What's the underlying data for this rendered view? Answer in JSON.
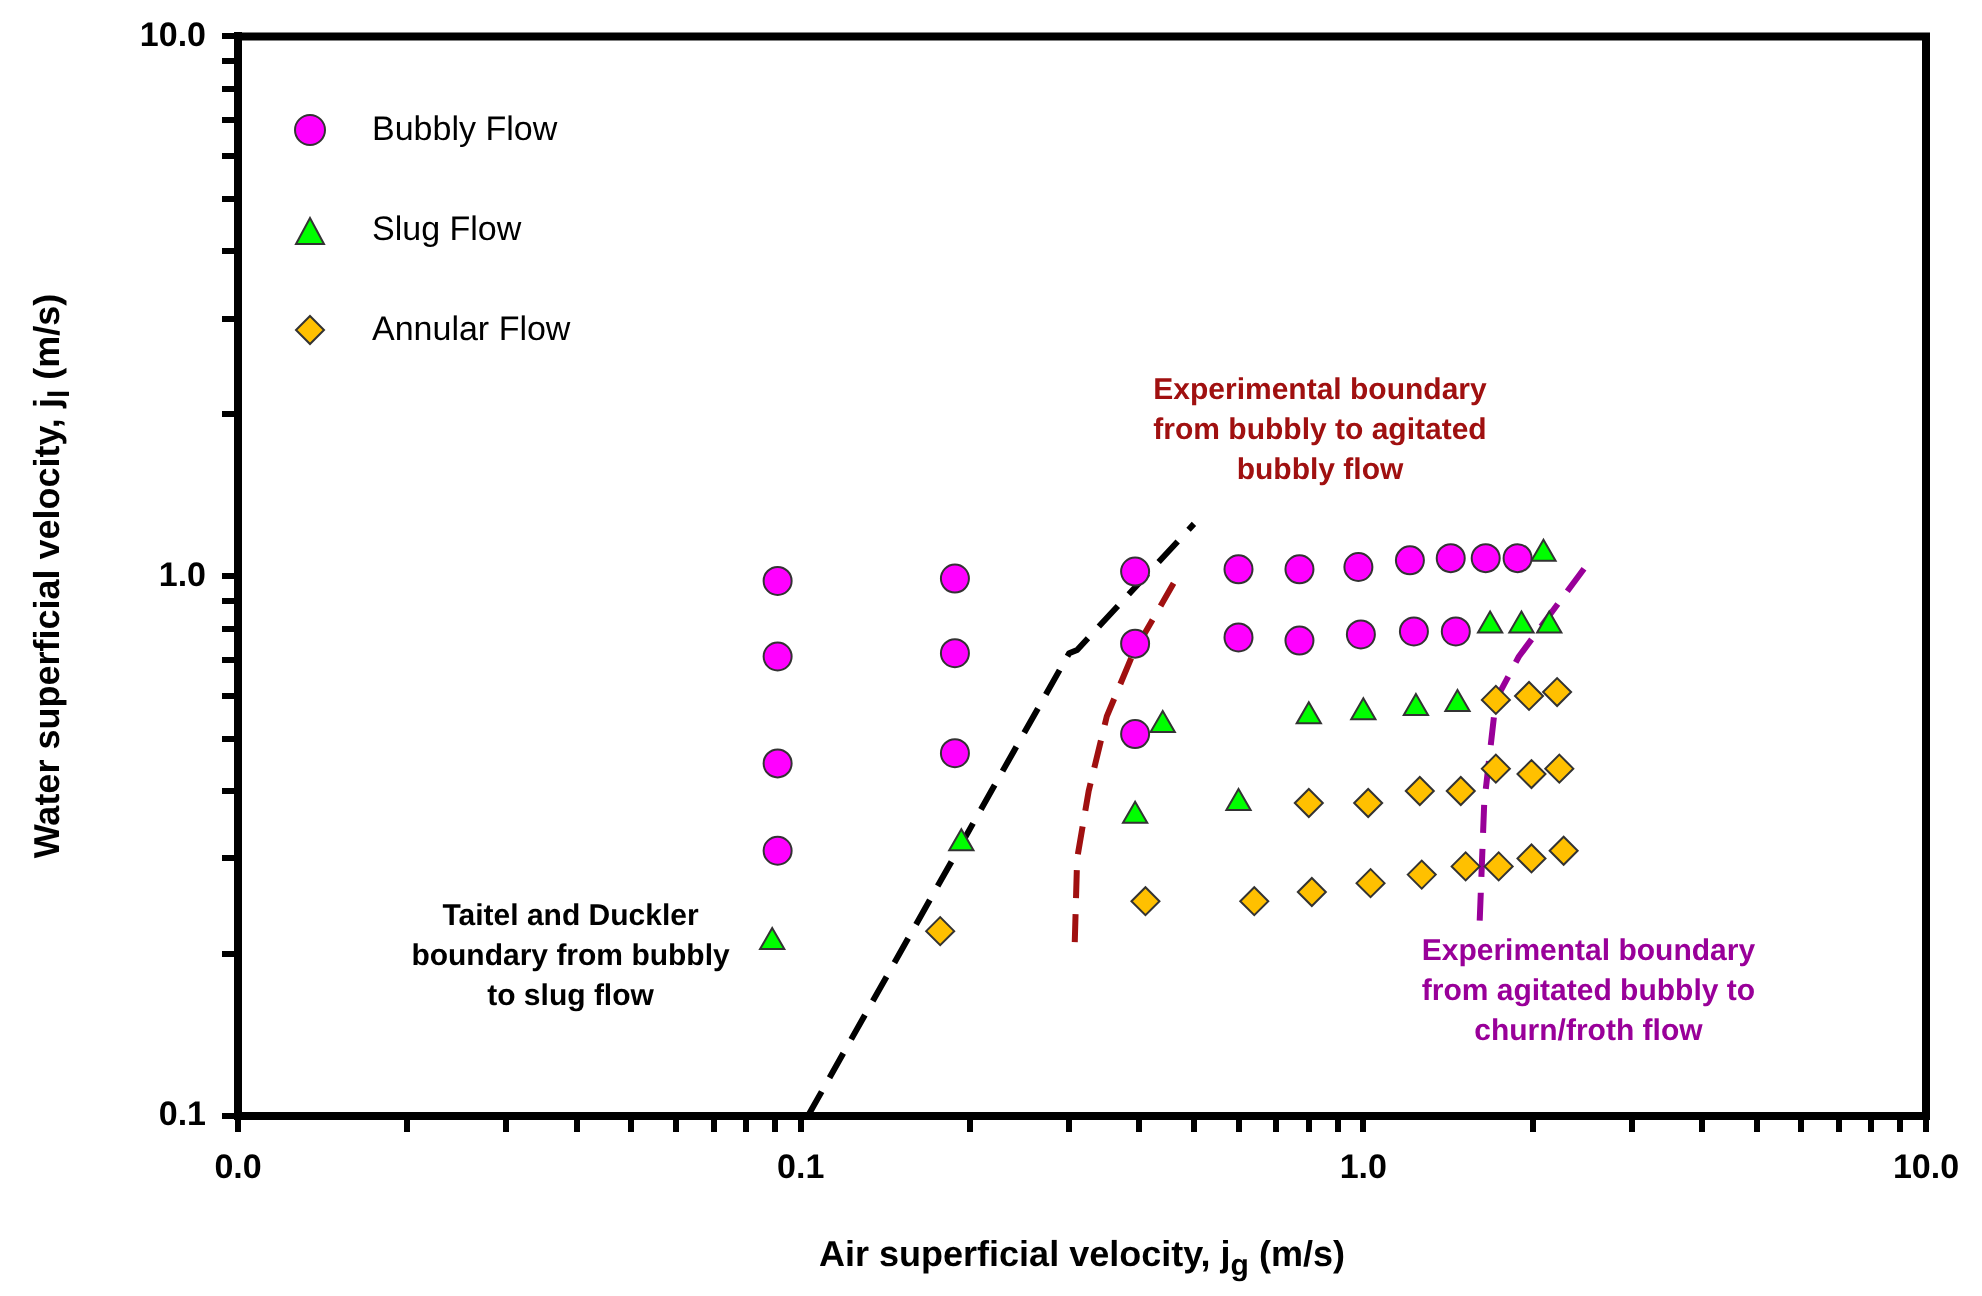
{
  "chart_data": {
    "type": "scatter",
    "xlabel": "Air superficial velocity, j$_{g}$ (m/s)",
    "ylabel": "Water superficial velocity, j$_{l}$ (m/s)",
    "log": "xy",
    "grid": false,
    "legend": "top left",
    "xlim": [
      0.01,
      10
    ],
    "ylim": [
      0.1,
      10
    ],
    "xticks": [
      {
        "value": 0.01,
        "label": "0.0"
      },
      {
        "value": 0.02,
        "label": null
      },
      {
        "value": 0.03,
        "label": null
      },
      {
        "value": 0.04,
        "label": null
      },
      {
        "value": 0.05,
        "label": null
      },
      {
        "value": 0.06,
        "label": null
      },
      {
        "value": 0.07,
        "label": null
      },
      {
        "value": 0.08,
        "label": null
      },
      {
        "value": 0.09,
        "label": null
      },
      {
        "value": 0.1,
        "label": "0.1"
      },
      {
        "value": 0.2,
        "label": null
      },
      {
        "value": 0.3,
        "label": null
      },
      {
        "value": 0.4,
        "label": null
      },
      {
        "value": 0.5,
        "label": null
      },
      {
        "value": 0.6,
        "label": null
      },
      {
        "value": 0.7,
        "label": null
      },
      {
        "value": 0.8,
        "label": null
      },
      {
        "value": 0.9,
        "label": null
      },
      {
        "value": 1,
        "label": "1.0"
      },
      {
        "value": 2,
        "label": null
      },
      {
        "value": 3,
        "label": null
      },
      {
        "value": 4,
        "label": null
      },
      {
        "value": 5,
        "label": null
      },
      {
        "value": 6,
        "label": null
      },
      {
        "value": 7,
        "label": null
      },
      {
        "value": 8,
        "label": null
      },
      {
        "value": 9,
        "label": null
      },
      {
        "value": 10,
        "label": "10.0"
      }
    ],
    "yticks": [
      {
        "value": 0.1,
        "label": "0.1"
      },
      {
        "value": 0.2,
        "label": null
      },
      {
        "value": 0.3,
        "label": null
      },
      {
        "value": 0.4,
        "label": null
      },
      {
        "value": 0.5,
        "label": null
      },
      {
        "value": 0.6,
        "label": null
      },
      {
        "value": 0.7,
        "label": null
      },
      {
        "value": 0.8,
        "label": null
      },
      {
        "value": 0.9,
        "label": null
      },
      {
        "value": 1,
        "label": "1.0"
      },
      {
        "value": 2,
        "label": null
      },
      {
        "value": 3,
        "label": null
      },
      {
        "value": 4,
        "label": null
      },
      {
        "value": 5,
        "label": null
      },
      {
        "value": 6,
        "label": null
      },
      {
        "value": 7,
        "label": null
      },
      {
        "value": 8,
        "label": null
      },
      {
        "value": 9,
        "label": null
      },
      {
        "value": 10,
        "label": "10.0"
      }
    ],
    "series": [
      {
        "name": "Bubbly Flow",
        "marker": "circle",
        "color": "#ff00ff",
        "x": [
          0.091,
          0.091,
          0.091,
          0.091,
          0.188,
          0.188,
          0.188,
          0.393,
          0.393,
          0.393,
          0.6,
          0.77,
          0.98,
          1.21,
          1.43,
          1.65,
          1.88,
          0.6,
          0.77,
          0.99,
          1.23,
          1.46
        ],
        "values": [
          0.98,
          0.71,
          0.45,
          0.31,
          0.99,
          0.72,
          0.47,
          1.02,
          0.75,
          0.51,
          1.03,
          1.03,
          1.04,
          1.07,
          1.08,
          1.08,
          1.08,
          0.77,
          0.76,
          0.78,
          0.79,
          0.79
        ]
      },
      {
        "name": "Slug Flow",
        "marker": "triangle",
        "color": "#00ff00",
        "x": [
          0.089,
          0.193,
          0.393,
          0.44,
          0.6,
          0.8,
          1.0,
          1.24,
          1.47,
          1.68,
          1.91,
          2.14,
          2.09
        ],
        "values": [
          0.21,
          0.32,
          0.36,
          0.53,
          0.38,
          0.55,
          0.56,
          0.57,
          0.58,
          0.81,
          0.81,
          0.81,
          1.1
        ]
      },
      {
        "name": "Annular Flow",
        "marker": "diamond",
        "color": "#ffc000",
        "x": [
          0.177,
          0.41,
          0.64,
          0.81,
          1.03,
          1.27,
          1.52,
          1.74,
          1.99,
          2.27,
          0.8,
          1.02,
          1.26,
          1.49,
          1.72,
          1.99,
          2.23,
          1.72,
          1.97,
          2.21
        ],
        "values": [
          0.22,
          0.25,
          0.25,
          0.26,
          0.27,
          0.28,
          0.29,
          0.29,
          0.3,
          0.31,
          0.38,
          0.38,
          0.4,
          0.4,
          0.44,
          0.43,
          0.44,
          0.59,
          0.6,
          0.61
        ]
      },
      {
        "type": "line",
        "marker": "none",
        "line_style": "dashed",
        "color": "#000000",
        "x": [
          0.103,
          0.3,
          0.31,
          0.5
        ],
        "values": [
          0.1,
          0.72,
          0.73,
          1.25
        ]
      },
      {
        "type": "line",
        "marker": "none",
        "line_style": "dashed",
        "color": "#a01010",
        "x": [
          0.307,
          0.31,
          0.325,
          0.35,
          0.39,
          0.46
        ],
        "values": [
          0.21,
          0.3,
          0.4,
          0.55,
          0.72,
          0.97
        ]
      },
      {
        "type": "line",
        "marker": "none",
        "line_style": "dashed",
        "color": "#990099",
        "x": [
          1.61,
          1.64,
          1.72,
          1.89,
          2.48
        ],
        "values": [
          0.23,
          0.38,
          0.59,
          0.71,
          1.04
        ]
      }
    ],
    "annotations": [
      "Taitel and Duckler\nboundary from bubbly\nto slug flow",
      "Experimental boundary\nfrom bubbly to agitated\nbubbly flow",
      "Experimental boundary\nfrom agitated bubbly to\nchurn/froth flow"
    ]
  }
}
